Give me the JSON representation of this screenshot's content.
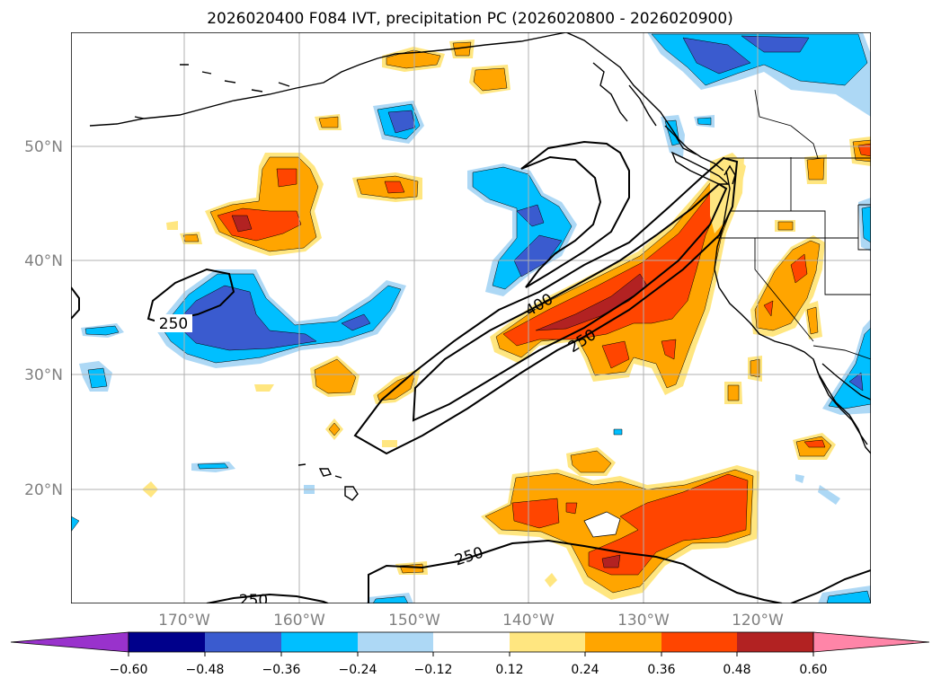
{
  "title": "2026020400 F084 IVT, precipitation PC (2026020800 - 2026020900)",
  "lat_labels": [
    "50°N",
    "40°N",
    "30°N",
    "20°N"
  ],
  "lon_labels": [
    "170°W",
    "160°W",
    "150°W",
    "140°W",
    "130°W",
    "120°W"
  ],
  "ivt_contour_labels": [
    "250",
    "400",
    "250",
    "250",
    "250"
  ],
  "colorbar": {
    "tick_labels": [
      "−0.60",
      "−0.48",
      "−0.36",
      "−0.24",
      "−0.12",
      "0.12",
      "0.24",
      "0.36",
      "0.48",
      "0.60"
    ],
    "colors": [
      "#9932cc",
      "#00008b",
      "#3a5bcf",
      "#00bfff",
      "#add8f5",
      "#ffffff",
      "#ffe680",
      "#ffa500",
      "#ff4500",
      "#b22222",
      "#ff85a8"
    ]
  },
  "palette": {
    "neg_strong": "#3a5bcf",
    "neg_mid": "#00bfff",
    "neg_weak": "#add8f5",
    "pos_weak": "#ffe680",
    "pos_mid": "#ffa500",
    "pos_strong": "#ff4500",
    "pos_max": "#b22222"
  }
}
